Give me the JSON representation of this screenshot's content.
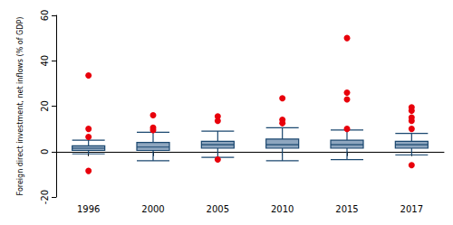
{
  "chart_data": {
    "type": "boxplot",
    "y_label": "Foreign direct investment, net inflows (% of GDP)",
    "categories": [
      "1996",
      "2000",
      "2005",
      "2010",
      "2015",
      "2017"
    ],
    "series": [
      {
        "type": "boxplot",
        "color": "#8ea6bf",
        "values": [
          [
            -1,
            0.5,
            1.5,
            2.5,
            5
          ],
          [
            -4,
            0.5,
            2,
            4,
            8.5
          ],
          [
            -2.5,
            1.5,
            3,
            4.5,
            9
          ],
          [
            -4,
            1.5,
            3,
            5.5,
            10.5
          ],
          [
            -3.5,
            1.5,
            3,
            5,
            9.5
          ],
          [
            -1.5,
            1.5,
            3,
            4.5,
            8
          ]
        ]
      },
      {
        "type": "scatter",
        "color": "#e8000b",
        "marker": "circle",
        "values": [
          [
            33.5,
            10,
            6.5,
            -8.5
          ],
          [
            16,
            10.5,
            9.5
          ],
          [
            15.5,
            13.5,
            -3.5
          ],
          [
            23.5,
            14,
            12.5
          ],
          [
            50,
            26,
            23,
            10
          ],
          [
            19.5,
            18,
            15,
            13.5,
            10,
            -6
          ]
        ]
      }
    ],
    "ylim": [
      -20,
      60
    ],
    "yticks": [
      -20,
      0,
      20,
      40,
      60
    ],
    "grid": false
  }
}
